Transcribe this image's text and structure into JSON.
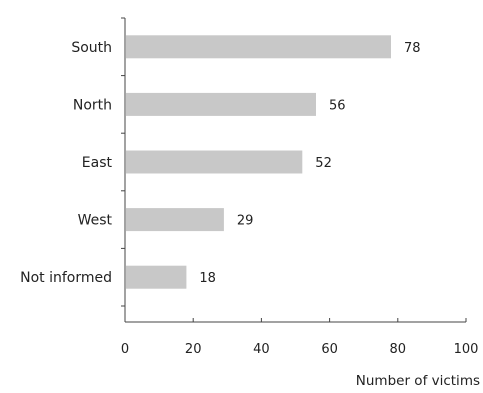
{
  "chart_data": {
    "type": "bar",
    "orientation": "horizontal",
    "categories": [
      "South",
      "North",
      "East",
      "West",
      "Not informed"
    ],
    "values": [
      78,
      56,
      52,
      29,
      18
    ],
    "value_labels": [
      "78",
      "56",
      "52",
      "29",
      "18"
    ],
    "x_ticks": [
      0,
      20,
      40,
      60,
      80,
      100
    ],
    "x_tick_labels": [
      "0",
      "20",
      "40",
      "60",
      "80",
      "100"
    ],
    "xlim": [
      0,
      100
    ],
    "xlabel": "Number of victims",
    "ylabel": "",
    "title": "",
    "grid": false,
    "legend": "none",
    "colors": {
      "bar": "#c8c8c8",
      "axis": "#444444",
      "text": "#222222"
    }
  }
}
